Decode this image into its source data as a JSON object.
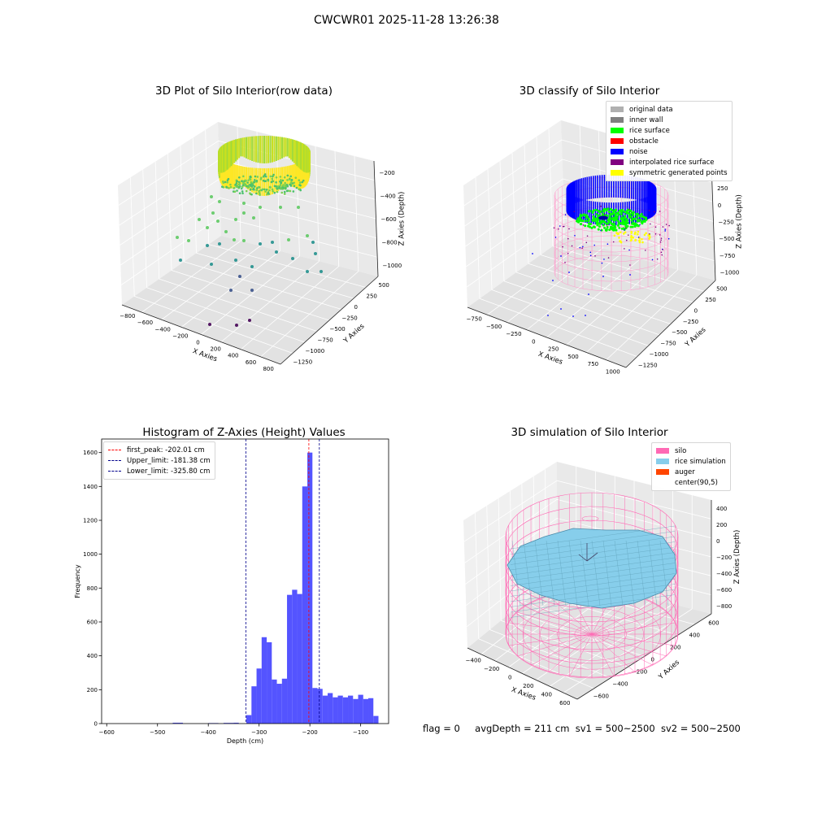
{
  "title": "CWCWR01 2025-11-28 13:26:38",
  "footer": {
    "flag": "flag = 0",
    "avg": "avgDepth = 211 cm",
    "sv1": "sv1 = 500~2500",
    "sv2": "sv2 = 500~2500"
  },
  "chart_data": [
    {
      "type": "scatter",
      "projection": "3d",
      "title": "3D Plot of Silo Interior(row data)",
      "xlabel": "X Axies",
      "ylabel": "Y Axies",
      "zlabel": "Z Axies (Depth)",
      "xticks": [
        "−800",
        "−600",
        "−400",
        "−200",
        "0",
        "200",
        "400",
        "600",
        "800"
      ],
      "yticks": [
        "500",
        "250",
        "0",
        "−250",
        "−500",
        "−750",
        "−1000",
        "−1250"
      ],
      "zticks": [
        "−200",
        "−400",
        "−600",
        "−800",
        "−1000"
      ],
      "colormap": "viridis",
      "grid": true
    },
    {
      "type": "scatter",
      "projection": "3d",
      "title": "3D classify of Silo Interior",
      "xlabel": "X Axies",
      "ylabel": "Y Axies",
      "zlabel": "Z Axies (Depth)",
      "xticks": [
        "−750",
        "−500",
        "−250",
        "0",
        "250",
        "500",
        "750",
        "1000"
      ],
      "yticks": [
        "500",
        "250",
        "0",
        "−250",
        "−500",
        "−750",
        "−1000",
        "−1250"
      ],
      "zticks": [
        "500",
        "250",
        "0",
        "−250",
        "−500",
        "−750",
        "−1000"
      ],
      "legend_position": "top-right",
      "legend": [
        {
          "label": "original data",
          "color": "#b0b0b0"
        },
        {
          "label": "inner wall",
          "color": "#808080"
        },
        {
          "label": "rice surface",
          "color": "#00ff00"
        },
        {
          "label": "obstacle",
          "color": "#ff0000"
        },
        {
          "label": "noise",
          "color": "#0000ff"
        },
        {
          "label": "interpolated rice surface",
          "color": "#800080"
        },
        {
          "label": "symmetric generated points",
          "color": "#ffff00"
        }
      ],
      "grid": true
    },
    {
      "type": "bar",
      "title": "Histogram of Z-Axies (Height) Values",
      "xlabel": "Depth (cm)",
      "ylabel": "Frequency",
      "xlim": [
        -610,
        -45
      ],
      "ylim": [
        0,
        1680
      ],
      "xticks": [
        -600,
        -500,
        -400,
        -300,
        -200,
        -100
      ],
      "xtick_labels": [
        "−600",
        "−500",
        "−400",
        "−300",
        "−200",
        "−100"
      ],
      "yticks": [
        0,
        200,
        400,
        600,
        800,
        1000,
        1200,
        1400,
        1600
      ],
      "bar_color": "#4b4bff",
      "bins": [
        {
          "x0": -470,
          "x1": -450,
          "count": 5
        },
        {
          "x0": -400,
          "x1": -380,
          "count": 3
        },
        {
          "x0": -370,
          "x1": -350,
          "count": 4
        },
        {
          "x0": -350,
          "x1": -340,
          "count": 5
        },
        {
          "x0": -325,
          "x1": -315,
          "count": 50
        },
        {
          "x0": -315,
          "x1": -305,
          "count": 220
        },
        {
          "x0": -305,
          "x1": -295,
          "count": 325
        },
        {
          "x0": -295,
          "x1": -285,
          "count": 510
        },
        {
          "x0": -285,
          "x1": -275,
          "count": 480
        },
        {
          "x0": -275,
          "x1": -265,
          "count": 260
        },
        {
          "x0": -265,
          "x1": -255,
          "count": 235
        },
        {
          "x0": -255,
          "x1": -245,
          "count": 265
        },
        {
          "x0": -245,
          "x1": -235,
          "count": 760
        },
        {
          "x0": -235,
          "x1": -225,
          "count": 790
        },
        {
          "x0": -225,
          "x1": -215,
          "count": 765
        },
        {
          "x0": -215,
          "x1": -205,
          "count": 1400
        },
        {
          "x0": -205,
          "x1": -195,
          "count": 1600
        },
        {
          "x0": -195,
          "x1": -185,
          "count": 210
        },
        {
          "x0": -185,
          "x1": -175,
          "count": 205
        },
        {
          "x0": -175,
          "x1": -165,
          "count": 165
        },
        {
          "x0": -165,
          "x1": -155,
          "count": 180
        },
        {
          "x0": -155,
          "x1": -145,
          "count": 155
        },
        {
          "x0": -145,
          "x1": -135,
          "count": 165
        },
        {
          "x0": -135,
          "x1": -125,
          "count": 155
        },
        {
          "x0": -125,
          "x1": -115,
          "count": 165
        },
        {
          "x0": -115,
          "x1": -105,
          "count": 145
        },
        {
          "x0": -105,
          "x1": -95,
          "count": 170
        },
        {
          "x0": -95,
          "x1": -85,
          "count": 145
        },
        {
          "x0": -85,
          "x1": -75,
          "count": 150
        },
        {
          "x0": -75,
          "x1": -65,
          "count": 45
        }
      ],
      "vlines": [
        {
          "label": "first_peak: -202.01 cm",
          "x": -202.01,
          "color": "#ff0000"
        },
        {
          "label": "Upper_limit: -181.38 cm",
          "x": -181.38,
          "color": "#00008b"
        },
        {
          "label": "Lower_limit: -325.80 cm",
          "x": -325.8,
          "color": "#00008b"
        }
      ],
      "legend_position": "top-left"
    },
    {
      "type": "surface",
      "projection": "3d",
      "title": "3D simulation of Silo Interior",
      "xlabel": "X Axies",
      "ylabel": "Y Axies",
      "zlabel": "Z Axies (Depth)",
      "xticks": [
        "−400",
        "−200",
        "0",
        "200",
        "400",
        "600"
      ],
      "yticks": [
        "600",
        "400",
        "200",
        "0",
        "−200",
        "−400",
        "−600"
      ],
      "zticks": [
        "400",
        "200",
        "0",
        "−200",
        "−400",
        "−600",
        "−800"
      ],
      "legend_position": "top-right",
      "legend": [
        {
          "label": "silo",
          "color": "#ff69b4"
        },
        {
          "label": "rice simulation",
          "color": "#87ceeb"
        },
        {
          "label": "auger",
          "color": "#ff4500"
        },
        {
          "label": "center(90,5)",
          "color": "#ffffff"
        }
      ],
      "grid": true
    }
  ]
}
